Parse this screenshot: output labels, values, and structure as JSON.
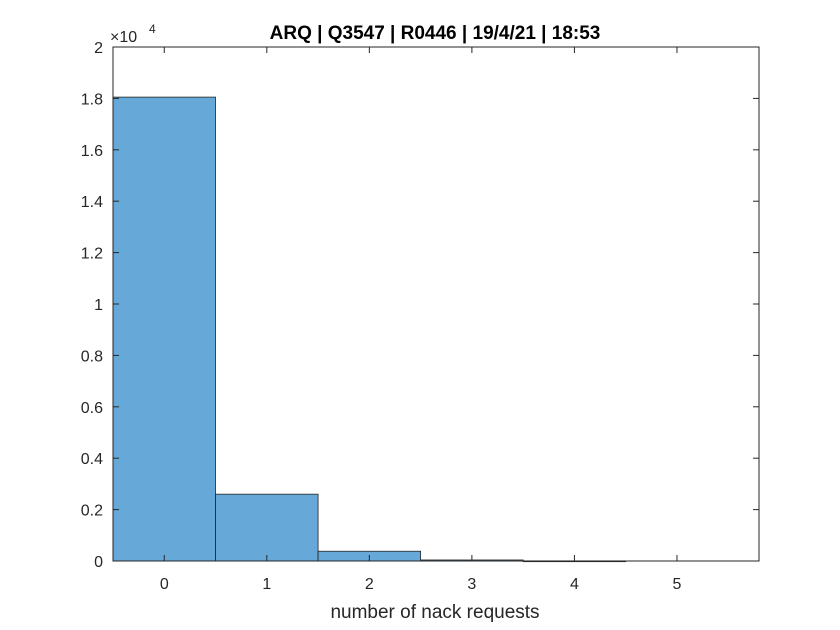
{
  "chart_data": {
    "type": "bar",
    "title": "ARQ | Q3547 | R0446 | 19/4/21 | 18:53",
    "xlabel": "number of nack requests",
    "ylabel": "",
    "categories": [
      "0",
      "1",
      "2",
      "3",
      "4",
      "5"
    ],
    "values": [
      18050,
      2600,
      380,
      40,
      5,
      0
    ],
    "xlim": [
      -0.5,
      5.8
    ],
    "ylim": [
      0,
      20000
    ],
    "xticks": [
      "0",
      "1",
      "2",
      "3",
      "4",
      "5"
    ],
    "yticks": [
      "0",
      "0.2",
      "0.4",
      "0.6",
      "0.8",
      "1",
      "1.2",
      "1.4",
      "1.6",
      "1.8",
      "2"
    ],
    "ytick_values": [
      0,
      2000,
      4000,
      6000,
      8000,
      10000,
      12000,
      14000,
      16000,
      18000,
      20000
    ],
    "y_exponent_base": "×10",
    "y_exponent_power": "4",
    "bar_color": "#66a8d8",
    "edge_color": "#262626",
    "grid": false,
    "legend": "none"
  }
}
